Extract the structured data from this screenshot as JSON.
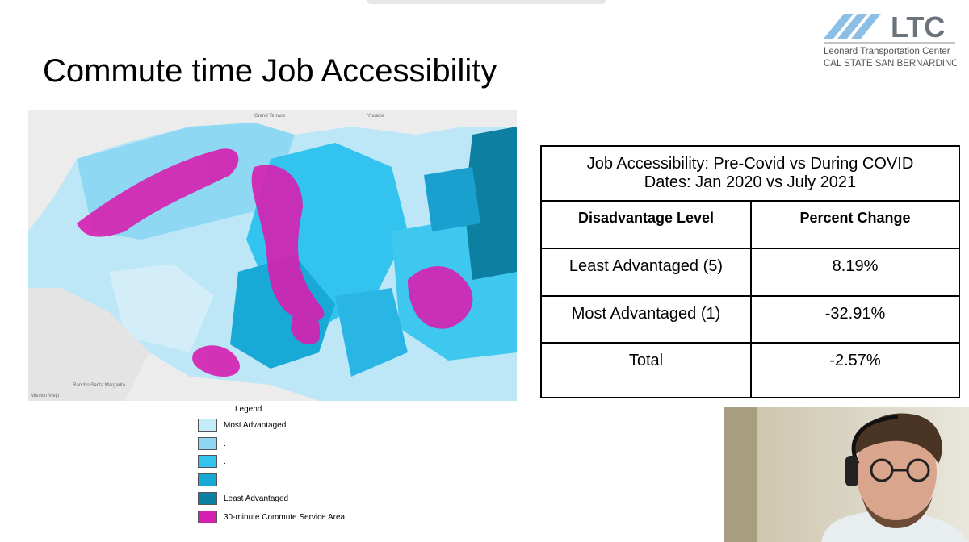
{
  "header": {
    "title": "Commute time Job Accessibility",
    "logo": {
      "mark": "LTC",
      "name": "Leonard Transportation Center",
      "school": "CAL STATE SAN BERNARDINO"
    }
  },
  "map": {
    "places": [
      "Grand Terrace",
      "Yucaipa",
      "Rancho Santa Margarita",
      "Mission Viejo"
    ]
  },
  "legend": {
    "title": "Legend",
    "items": [
      "Most Advantaged",
      ".",
      ".",
      ".",
      "Least Advantaged",
      "30-minute Commute Service Area"
    ]
  },
  "table": {
    "title": [
      "Job Accessibility: Pre-Covid vs During COVID",
      "Dates: Jan 2020 vs July 2021"
    ],
    "columns": [
      "Disadvantage Level",
      "Percent Change"
    ],
    "rows": [
      [
        "Least Advantaged (5)",
        "8.19%"
      ],
      [
        "Most Advantaged (1)",
        "-32.91%"
      ],
      [
        "Total",
        "-2.57%"
      ]
    ]
  }
}
